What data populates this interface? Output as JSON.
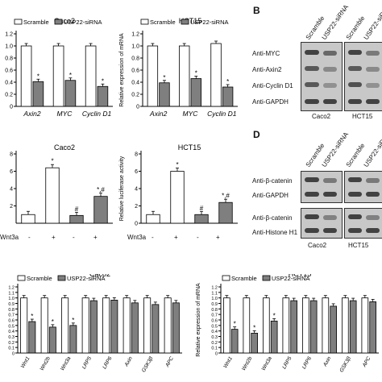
{
  "panels": {
    "letter_b": "B",
    "letter_d": "D"
  },
  "legend": {
    "scramble": "Scramble",
    "sirna": "USP22-siRNA"
  },
  "symbols": {
    "star": "*",
    "star_hash": "*,#",
    "hash": "#"
  },
  "colors": {
    "white_bar": "#ffffff",
    "gray_bar": "#7f7f7f"
  },
  "wnt3a": {
    "label": "Wnt3a",
    "conditions": [
      "-",
      "+",
      "-",
      "+"
    ]
  },
  "chart_data": [
    {
      "id": "A-caco2",
      "type": "bar",
      "title": "Caco2",
      "ylabel": "",
      "ylim": [
        0,
        1.2
      ],
      "yticks": [
        "0",
        "0.2",
        "0.4",
        "0.6",
        "0.8",
        "1.0",
        "1.2"
      ],
      "categories": [
        "Axin2",
        "MYC",
        "Cyclin D1"
      ],
      "series": [
        {
          "name": "Scramble",
          "values": [
            1.0,
            1.0,
            1.0
          ]
        },
        {
          "name": "USP22-siRNA",
          "values": [
            0.41,
            0.43,
            0.33
          ]
        }
      ],
      "annotations": [
        "*",
        "*",
        "*"
      ]
    },
    {
      "id": "A-hct15",
      "type": "bar",
      "title": "HCT15",
      "ylabel": "Relative expression of mRNA",
      "ylim": [
        0,
        1.2
      ],
      "yticks": [
        "0",
        "0.2",
        "0.4",
        "0.6",
        "0.8",
        "1.0",
        "1.2"
      ],
      "categories": [
        "Axin2",
        "MYC",
        "Cyclin D1"
      ],
      "series": [
        {
          "name": "Scramble",
          "values": [
            1.0,
            1.0,
            1.04
          ]
        },
        {
          "name": "USP22-siRNA",
          "values": [
            0.39,
            0.46,
            0.32
          ]
        }
      ],
      "annotations": [
        "*",
        "*",
        "*"
      ]
    },
    {
      "id": "C-caco2",
      "type": "bar",
      "title": "Caco2",
      "ylabel": "",
      "ylim": [
        0,
        8
      ],
      "yticks": [
        "2",
        "4",
        "6",
        "8"
      ],
      "categories": [
        "-",
        "+",
        "-",
        "+"
      ],
      "values": [
        1.0,
        6.4,
        0.9,
        3.1
      ],
      "bar_colors": [
        "white",
        "white",
        "gray",
        "gray"
      ],
      "annotations": [
        "",
        "*",
        "#",
        "*,#"
      ]
    },
    {
      "id": "C-hct15",
      "type": "bar",
      "title": "HCT15",
      "ylabel": "Relative luciferase activity",
      "ylim": [
        0,
        8
      ],
      "yticks": [
        "0",
        "2",
        "4",
        "6",
        "8"
      ],
      "categories": [
        "-",
        "+",
        "-",
        "+"
      ],
      "values": [
        1.0,
        6.0,
        1.0,
        2.4
      ],
      "bar_colors": [
        "white",
        "white",
        "gray",
        "gray"
      ],
      "annotations": [
        "",
        "*",
        "#",
        "*,#"
      ]
    },
    {
      "id": "E-caco2",
      "type": "bar",
      "title": "Caco2",
      "ylabel": "",
      "ylim": [
        0,
        1.2
      ],
      "yticks": [
        "0",
        "0.1",
        "0.2",
        "0.3",
        "0.4",
        "0.5",
        "0.6",
        "0.7",
        "0.8",
        "0.9",
        "1.0",
        "1.1",
        "1.2"
      ],
      "categories": [
        "Wnt1",
        "Wnt2b",
        "Wnt3a",
        "LRP5",
        "LRP6",
        "Axin",
        "GSK3β",
        "APC"
      ],
      "series": [
        {
          "name": "Scramble",
          "values": [
            1.0,
            1.0,
            1.0,
            1.0,
            1.0,
            1.0,
            1.0,
            1.0
          ]
        },
        {
          "name": "USP22-siRNA",
          "values": [
            0.57,
            0.47,
            0.5,
            0.95,
            0.96,
            0.91,
            0.88,
            0.91
          ]
        }
      ],
      "annotations": [
        "*",
        "*",
        "*",
        "",
        "",
        "",
        "",
        ""
      ]
    },
    {
      "id": "E-hct15",
      "type": "bar",
      "title": "HCT15",
      "ylabel": "Relative expression of mRNA",
      "ylim": [
        0,
        1.2
      ],
      "yticks": [
        "0",
        "0.1",
        "0.2",
        "0.3",
        "0.4",
        "0.5",
        "0.6",
        "0.7",
        "0.8",
        "0.9",
        "1.0",
        "1.1",
        "1.2"
      ],
      "categories": [
        "Wnt1",
        "Wnt2b",
        "Wnt3a",
        "LRP5",
        "LRP6",
        "Axin",
        "GSK3β",
        "APC"
      ],
      "series": [
        {
          "name": "Scramble",
          "values": [
            1.0,
            1.0,
            1.0,
            1.0,
            1.0,
            1.0,
            1.0,
            1.0
          ]
        },
        {
          "name": "USP22-siRNA",
          "values": [
            0.43,
            0.36,
            0.58,
            0.95,
            0.95,
            0.85,
            0.95,
            0.93
          ]
        }
      ],
      "annotations": [
        "*",
        "*",
        "*",
        "",
        "",
        "",
        "",
        ""
      ]
    }
  ],
  "blot_b": {
    "lanes": [
      "Scramble",
      "USP22-siRNA",
      "Scramble",
      "USP22-siRNA"
    ],
    "rows": [
      "Anti-MYC",
      "Anti-Axin2",
      "Anti-Cyclin D1",
      "Anti-GAPDH"
    ],
    "cells": [
      "Caco2",
      "HCT15"
    ]
  },
  "blot_d": {
    "lanes": [
      "Scramble",
      "USP22-siRNA",
      "Scramble",
      "USP22-siRNA"
    ],
    "rows": [
      "Anti-β-catenin",
      "Anti-GAPDH",
      "Anti-β-catenin",
      "Anti-Histone H1"
    ],
    "cells": [
      "Caco2",
      "HCT15"
    ]
  }
}
